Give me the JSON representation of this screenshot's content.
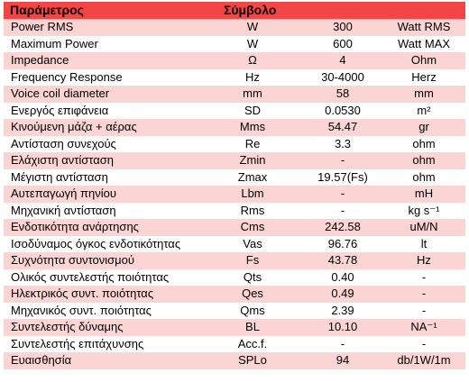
{
  "header": {
    "param": "Παράμετρος",
    "symbol": "Σύμβολο",
    "value": "",
    "unit": ""
  },
  "rows": [
    {
      "param": "Power RMS",
      "symbol": "W",
      "value": "300",
      "unit": "Watt RMS"
    },
    {
      "param": "Maximum Power",
      "symbol": "W",
      "value": "600",
      "unit": "Watt MAX"
    },
    {
      "param": "Impedance",
      "symbol": "Ω",
      "value": "4",
      "unit": "Ohm"
    },
    {
      "param": "Frequency Response",
      "symbol": "Hz",
      "value": "30-4000",
      "unit": "Herz"
    },
    {
      "param": "Voice coil diameter",
      "symbol": "mm",
      "value": "58",
      "unit": "mm"
    },
    {
      "param": "Ενεργός επιφάνεια",
      "symbol": "SD",
      "value": "0.0530",
      "unit": "m²"
    },
    {
      "param": "Κινούμενη μάζα + αέρας",
      "symbol": "Mms",
      "value": "54.47",
      "unit": "gr"
    },
    {
      "param": "Αντίσταση συνεχούς",
      "symbol": "Re",
      "value": "3.3",
      "unit": "ohm"
    },
    {
      "param": "Ελάχιστη αντίσταση",
      "symbol": "Zmin",
      "value": "-",
      "unit": "ohm"
    },
    {
      "param": "Μέγιστη αντίσταση",
      "symbol": "Zmax",
      "value": "19.57(Fs)",
      "unit": "ohm"
    },
    {
      "param": "Αυτεπαγωγή πηνίου",
      "symbol": "Lbm",
      "value": "-",
      "unit": "mH"
    },
    {
      "param": "Μηχανική αντίσταση",
      "symbol": "Rms",
      "value": "-",
      "unit": "kg s⁻¹"
    },
    {
      "param": "Ενδοτικότητα ανάρτησης",
      "symbol": "Cms",
      "value": "242.58",
      "unit": "uM/N"
    },
    {
      "param": "Ισοδύναμος όγκος ενδοτικότητας",
      "symbol": "Vas",
      "value": "96.76",
      "unit": "lt"
    },
    {
      "param": "Συχνότητα συντονισμού",
      "symbol": "Fs",
      "value": "43.78",
      "unit": "Hz"
    },
    {
      "param": "Ολικός συντελεστής ποιότητας",
      "symbol": "Qts",
      "value": "0.40",
      "unit": "-"
    },
    {
      "param": "Ηλεκτρικός συντ. ποιότητας",
      "symbol": "Qes",
      "value": "0.49",
      "unit": "-"
    },
    {
      "param": "Μηχανικός συντ. ποιότητας",
      "symbol": "Qms",
      "value": "2.39",
      "unit": "-"
    },
    {
      "param": "Συντελεστής δύναμης",
      "symbol": "BL",
      "value": "10.10",
      "unit": "NA⁻¹"
    },
    {
      "param": "Συντελεστής επιτάχυνσης",
      "symbol": "Acc.f.",
      "value": "-",
      "unit": "-"
    },
    {
      "param": "Ευαισθησία",
      "symbol": "SPLo",
      "value": "94",
      "unit": "db/1W/1m"
    }
  ]
}
